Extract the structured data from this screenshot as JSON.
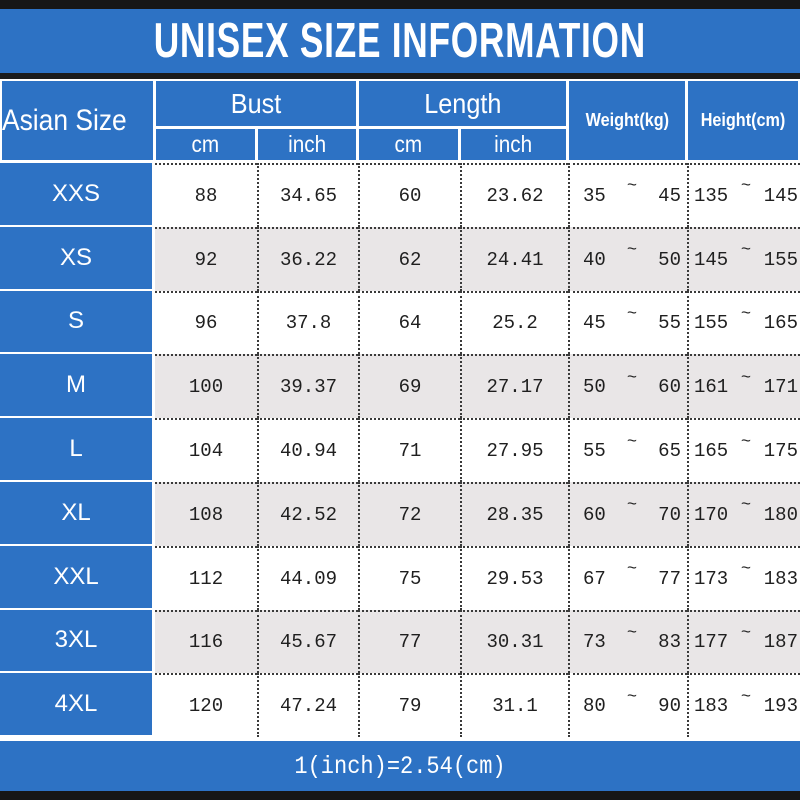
{
  "title": "UNISEX SIZE INFORMATION",
  "header": {
    "corner": "Asian Size",
    "groups": [
      {
        "label": "Bust",
        "subs": [
          "cm",
          "inch"
        ]
      },
      {
        "label": "Length",
        "subs": [
          "cm",
          "inch"
        ]
      }
    ],
    "weight": "Weight(kg)",
    "height": "Height(cm)"
  },
  "table": {
    "tilde": "~",
    "rows": [
      {
        "size": "XXS",
        "bust_cm": "88",
        "bust_inch": "34.65",
        "length_cm": "60",
        "length_inch": "23.62",
        "weight_min": "35",
        "weight_max": "45",
        "height_min": "135",
        "height_max": "145"
      },
      {
        "size": "XS",
        "bust_cm": "92",
        "bust_inch": "36.22",
        "length_cm": "62",
        "length_inch": "24.41",
        "weight_min": "40",
        "weight_max": "50",
        "height_min": "145",
        "height_max": "155"
      },
      {
        "size": "S",
        "bust_cm": "96",
        "bust_inch": "37.8",
        "length_cm": "64",
        "length_inch": "25.2",
        "weight_min": "45",
        "weight_max": "55",
        "height_min": "155",
        "height_max": "165"
      },
      {
        "size": "M",
        "bust_cm": "100",
        "bust_inch": "39.37",
        "length_cm": "69",
        "length_inch": "27.17",
        "weight_min": "50",
        "weight_max": "60",
        "height_min": "161",
        "height_max": "171"
      },
      {
        "size": "L",
        "bust_cm": "104",
        "bust_inch": "40.94",
        "length_cm": "71",
        "length_inch": "27.95",
        "weight_min": "55",
        "weight_max": "65",
        "height_min": "165",
        "height_max": "175"
      },
      {
        "size": "XL",
        "bust_cm": "108",
        "bust_inch": "42.52",
        "length_cm": "72",
        "length_inch": "28.35",
        "weight_min": "60",
        "weight_max": "70",
        "height_min": "170",
        "height_max": "180"
      },
      {
        "size": "XXL",
        "bust_cm": "112",
        "bust_inch": "44.09",
        "length_cm": "75",
        "length_inch": "29.53",
        "weight_min": "67",
        "weight_max": "77",
        "height_min": "173",
        "height_max": "183"
      },
      {
        "size": "3XL",
        "bust_cm": "116",
        "bust_inch": "45.67",
        "length_cm": "77",
        "length_inch": "30.31",
        "weight_min": "73",
        "weight_max": "83",
        "height_min": "177",
        "height_max": "187"
      },
      {
        "size": "4XL",
        "bust_cm": "120",
        "bust_inch": "47.24",
        "length_cm": "79",
        "length_inch": "31.1",
        "weight_min": "80",
        "weight_max": "90",
        "height_min": "183",
        "height_max": "193"
      }
    ]
  },
  "footer_note": "1(inch)=2.54(cm)",
  "colors": {
    "blue": "#2D72C4",
    "alt_row_gray": "#E9E6E7",
    "bar_black": "#161616",
    "dotted_border": "#3A3A3A",
    "text_dark": "#1F1F1F",
    "text_white": "#FFFFFF"
  },
  "chart_data": {
    "type": "table",
    "title": "UNISEX SIZE INFORMATION",
    "columns": [
      "Asian Size",
      "Bust cm",
      "Bust inch",
      "Length cm",
      "Length inch",
      "Weight(kg)",
      "Height(cm)"
    ],
    "rows": [
      [
        "XXS",
        88,
        34.65,
        60,
        23.62,
        "35~45",
        "135~145"
      ],
      [
        "XS",
        92,
        36.22,
        62,
        24.41,
        "40~50",
        "145~155"
      ],
      [
        "S",
        96,
        37.8,
        64,
        25.2,
        "45~55",
        "155~165"
      ],
      [
        "M",
        100,
        39.37,
        69,
        27.17,
        "50~60",
        "161~171"
      ],
      [
        "L",
        104,
        40.94,
        71,
        27.95,
        "55~65",
        "165~175"
      ],
      [
        "XL",
        108,
        42.52,
        72,
        28.35,
        "60~70",
        "170~180"
      ],
      [
        "XXL",
        112,
        44.09,
        75,
        29.53,
        "67~77",
        "173~183"
      ],
      [
        "3XL",
        116,
        45.67,
        77,
        30.31,
        "73~83",
        "177~187"
      ],
      [
        "4XL",
        120,
        47.24,
        79,
        31.1,
        "80~90",
        "183~193"
      ]
    ],
    "note": "1(inch)=2.54(cm)"
  }
}
